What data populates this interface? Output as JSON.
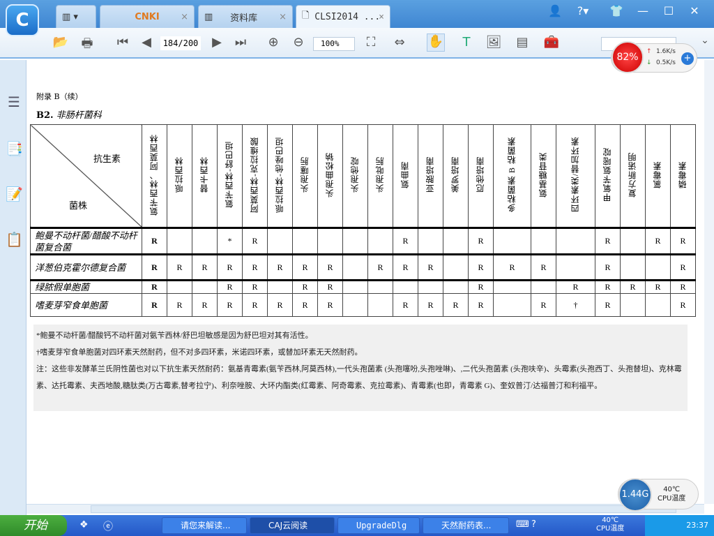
{
  "titlebar": {
    "logo_text": "C",
    "tabs": [
      {
        "label": "CNKI",
        "icon": "cnki-logo"
      },
      {
        "label": "资料库",
        "icon": "library-icon"
      },
      {
        "label": "CLSI2014  ...",
        "icon": "document-icon"
      }
    ],
    "close_glyph": "×"
  },
  "toolbar": {
    "page": "184/200",
    "zoom": "100%"
  },
  "net_monitor": {
    "percent": "82%",
    "up": "1.6K/s",
    "down": "0.5K/s"
  },
  "document": {
    "appendix": "附录 B（续）",
    "section_num": "B2.",
    "section_title": "非肠杆菌科",
    "table": {
      "corner_top": "抗生素",
      "corner_bottom": "菌株",
      "columns": [
        "氨苄西林、阿莫西林",
        "哌拉西林",
        "替卡西林",
        "氨苄西林-舒巴坦",
        "阿莫西林-克拉维酸",
        "哌拉西林-他唑巴坦",
        "头孢噻肟",
        "头孢曲松钠",
        "头孢他啶",
        "头孢吡肟",
        "氨曲南",
        "亚胺培南",
        "美罗培南",
        "厄他培南",
        "多粘菌素 B 粘菌素",
        "氨基糖苷类",
        "四环素类/替加环素",
        "甲氧苄氨嘧啶",
        "复方新诺明",
        "氯霉素",
        "磷霉素"
      ],
      "rows": [
        {
          "organism": "鲍曼不动杆菌/醋酸不动杆菌复合菌",
          "cells": [
            "R",
            "",
            "",
            "*",
            "R",
            "",
            "",
            "",
            "",
            "",
            "R",
            "",
            "",
            "R",
            "",
            "",
            "",
            "R",
            "",
            "R",
            "R"
          ]
        },
        {
          "organism": "洋葱伯克霍尔德复合菌",
          "cells": [
            "R",
            "R",
            "R",
            "R",
            "R",
            "R",
            "R",
            "R",
            "",
            "R",
            "R",
            "R",
            "",
            "R",
            "R",
            "R",
            "",
            "R",
            "",
            "",
            "R"
          ]
        },
        {
          "organism": "绿脓假单胞菌",
          "cells": [
            "R",
            "",
            "",
            "R",
            "R",
            "",
            "R",
            "R",
            "",
            "",
            "",
            "",
            "",
            "R",
            "",
            "",
            "R",
            "R",
            "R",
            "R",
            "R"
          ]
        },
        {
          "organism": "嗜麦芽窄食单胞菌",
          "cells": [
            "R",
            "R",
            "R",
            "R",
            "R",
            "R",
            "R",
            "R",
            "",
            "",
            "R",
            "R",
            "R",
            "R",
            "",
            "R",
            "†",
            "R",
            "",
            "",
            "R"
          ]
        }
      ]
    },
    "notes": [
      "*鲍曼不动杆菌/醋酸钙不动杆菌对氨苄西林/舒巴坦敏感是因为舒巴坦对其有活性。",
      "†嗜麦芽窄食单胞菌对四环素天然耐药，但不对多四环素，米诺四环素，或替加环素无天然耐药。",
      "注：这些非发酵革兰氏阴性菌也对以下抗生素天然耐药：氨基青霉素(氨苄西林,阿莫西林),一代头孢菌素 (头孢噻吩,头孢唑啉)、,二代头孢菌素 (头孢呋辛)、头霉素(头孢西丁、头孢替坦)、克林霉素、达托霉素、夫西地酸,糖肽类(万古霉素,替考拉宁)、利奈唑胺、大环内酯类(红霉素、阿奇霉素、克拉霉素)、青霉素(也即，青霉素 G)、奎奴普汀/达福普汀和利福平。"
    ]
  },
  "cpu_widget": {
    "freq": "1.44G",
    "temp": "40℃",
    "label": "CPU温度"
  },
  "taskbar": {
    "start": "开始",
    "tasks": [
      "请您来解读...",
      "CAJ云阅读",
      "UpgradeDlg",
      "天然耐药表..."
    ],
    "cpu_temp": "40℃",
    "cpu_label": "CPU温度",
    "clock": "23:37"
  },
  "colors": {
    "titlebar": "#4a90d8",
    "taskbar": "#2458c8",
    "net_ball": "#d42020",
    "cpu_ball": "#1c5fa8",
    "notes_bg": "#f0f0f0"
  }
}
